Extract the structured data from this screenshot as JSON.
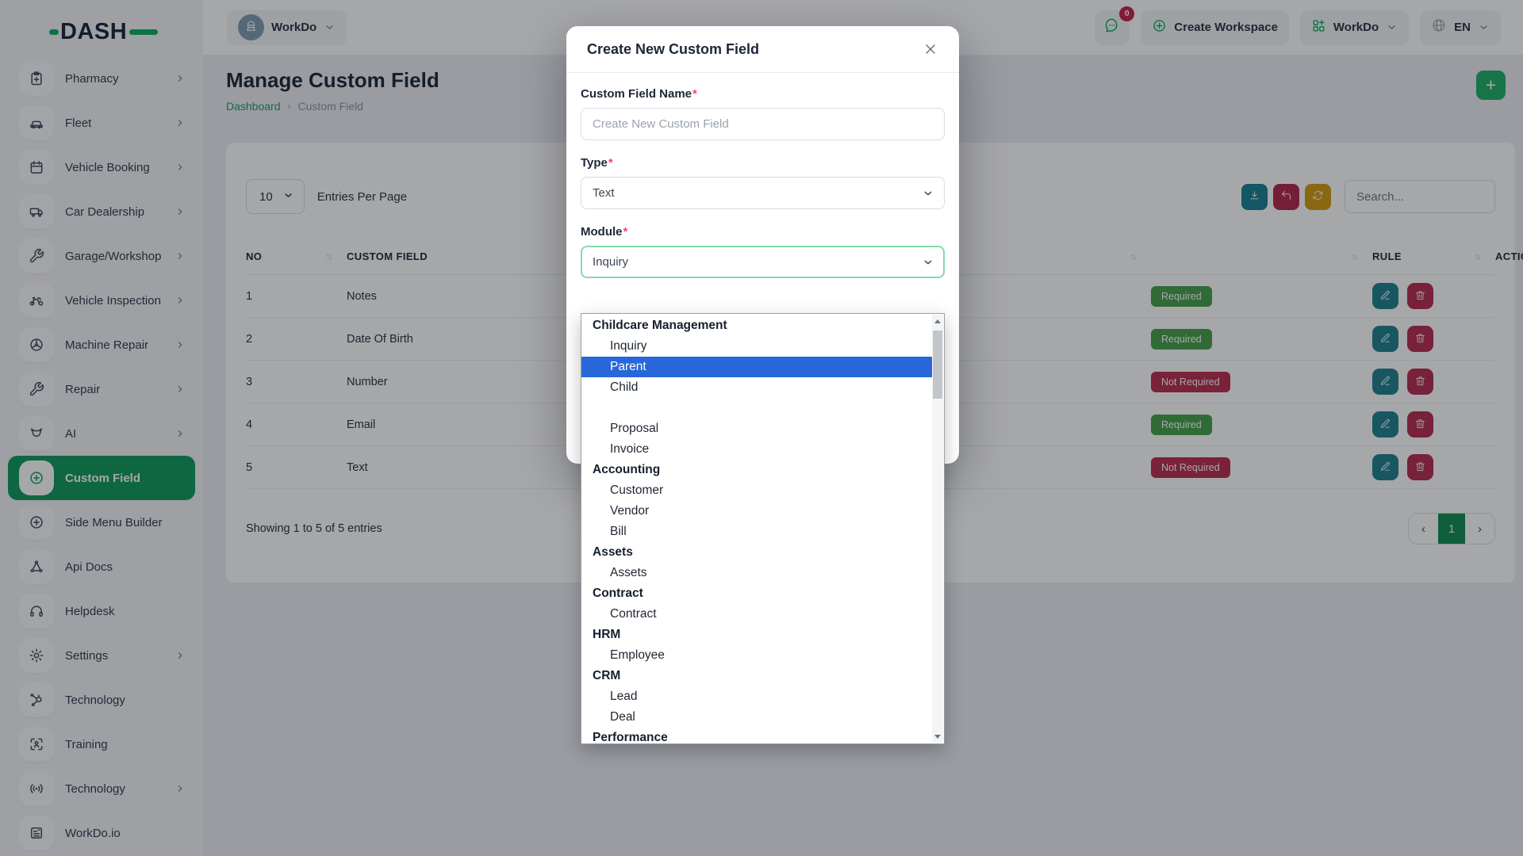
{
  "brand": {
    "name": "DASH",
    "accent": "#0caf60"
  },
  "colors": {
    "brand": "#0caf60",
    "active_item": "#109a5c",
    "required_badge": "#45a149",
    "not_required_badge": "#b82d4e",
    "highlight_blue": "#2767d9",
    "action_edit": "#1f808f",
    "action_delete": "#b52b50",
    "toolbar_teal": "#177f93",
    "toolbar_red": "#b3274c",
    "toolbar_amber": "#d29a12"
  },
  "sidebar": {
    "items": [
      {
        "label": "Pharmacy",
        "icon": "clipboard-plus-icon",
        "chevron": true,
        "active": false
      },
      {
        "label": "Fleet",
        "icon": "car-icon",
        "chevron": true,
        "active": false
      },
      {
        "label": "Vehicle Booking",
        "icon": "calendar-icon",
        "chevron": true,
        "active": false
      },
      {
        "label": "Car Dealership",
        "icon": "van-icon",
        "chevron": true,
        "active": false
      },
      {
        "label": "Garage/Workshop",
        "icon": "wrench-icon",
        "chevron": true,
        "active": false
      },
      {
        "label": "Vehicle Inspection",
        "icon": "motorcycle-icon",
        "chevron": true,
        "active": false
      },
      {
        "label": "Machine Repair",
        "icon": "fan-icon",
        "chevron": true,
        "active": false
      },
      {
        "label": "Repair",
        "icon": "wrench-icon",
        "chevron": true,
        "active": false
      },
      {
        "label": "AI",
        "icon": "ai-icon",
        "chevron": true,
        "active": false
      },
      {
        "label": "Custom Field",
        "icon": "plus-circle-icon",
        "chevron": false,
        "active": true
      },
      {
        "label": "Side Menu Builder",
        "icon": "plus-circle-icon",
        "chevron": false,
        "active": false
      },
      {
        "label": "Api Docs",
        "icon": "nodes-icon",
        "chevron": false,
        "active": false
      },
      {
        "label": "Helpdesk",
        "icon": "headset-icon",
        "chevron": false,
        "active": false
      },
      {
        "label": "Settings",
        "icon": "gear-icon",
        "chevron": true,
        "active": false
      },
      {
        "label": "Technology",
        "icon": "hub-icon",
        "chevron": false,
        "active": false
      },
      {
        "label": "Training",
        "icon": "scan-icon",
        "chevron": false,
        "active": false
      },
      {
        "label": "Technology",
        "icon": "broadcast-icon",
        "chevron": true,
        "active": false
      },
      {
        "label": "WorkDo.io",
        "icon": "news-icon",
        "chevron": false,
        "active": false
      }
    ]
  },
  "header": {
    "workspace_label": "WorkDo",
    "chat_badge": "0",
    "create_workspace_label": "Create Workspace",
    "app_menu_label": "WorkDo",
    "language": "EN"
  },
  "page": {
    "title": "Manage Custom Field",
    "breadcrumb": {
      "home": "Dashboard",
      "separator": "›",
      "current": "Custom Field"
    },
    "add_button": "+"
  },
  "toolbar": {
    "page_size": "10",
    "entries_label": "Entries Per Page",
    "search_placeholder": "Search...",
    "sort_glyph": "↑↓"
  },
  "table": {
    "columns": [
      {
        "label": "NO",
        "sortable": true
      },
      {
        "label": "CUSTOM FIELD",
        "sortable": true
      },
      {
        "label": "",
        "sortable": true
      },
      {
        "label": "RULE",
        "sortable": true
      },
      {
        "label": "ACTION",
        "sortable": false
      }
    ],
    "rows": [
      {
        "no": "1",
        "custom_field": "Notes",
        "rule": "Required"
      },
      {
        "no": "2",
        "custom_field": "Date Of Birth",
        "rule": "Required"
      },
      {
        "no": "3",
        "custom_field": "Number",
        "rule": "Not Required"
      },
      {
        "no": "4",
        "custom_field": "Email",
        "rule": "Required"
      },
      {
        "no": "5",
        "custom_field": "Text",
        "rule": "Not Required"
      }
    ]
  },
  "footer": {
    "showing": "Showing 1 to 5 of 5 entries",
    "pagination": {
      "prev": "‹",
      "current": "1",
      "next": "›"
    }
  },
  "modal": {
    "title": "Create New Custom Field",
    "fields": {
      "name": {
        "label": "Custom Field Name",
        "required_mark": "*",
        "placeholder": "Create New Custom Field"
      },
      "type": {
        "label": "Type",
        "required_mark": "*",
        "value": "Text"
      },
      "module": {
        "label": "Module",
        "required_mark": "*",
        "value": "Inquiry"
      }
    },
    "dropdown": {
      "selected": "Parent",
      "groups": [
        {
          "label": "Childcare Management",
          "options": [
            "Inquiry",
            "Parent",
            "Child"
          ]
        },
        {
          "label": "",
          "options": [
            "Proposal",
            "Invoice"
          ]
        },
        {
          "label": "Accounting",
          "options": [
            "Customer",
            "Vendor",
            "Bill"
          ]
        },
        {
          "label": "Assets",
          "options": [
            "Assets"
          ]
        },
        {
          "label": "Contract",
          "options": [
            "Contract"
          ]
        },
        {
          "label": "HRM",
          "options": [
            "Employee"
          ]
        },
        {
          "label": "CRM",
          "options": [
            "Lead",
            "Deal"
          ]
        },
        {
          "label": "Performance",
          "options": []
        }
      ]
    }
  }
}
